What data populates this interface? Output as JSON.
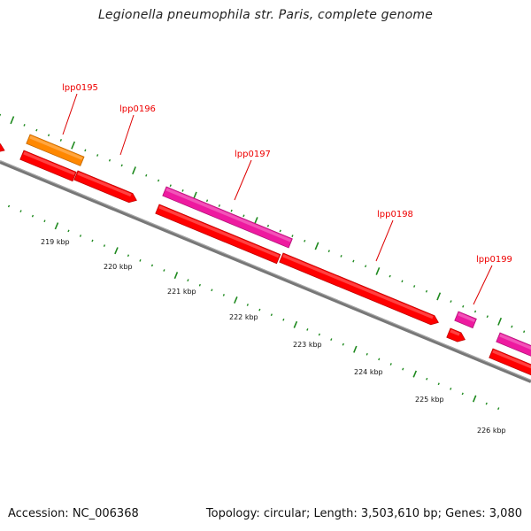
{
  "title": "Legionella pneumophila str. Paris, complete genome",
  "footer": {
    "accession": "Accession: NC_006368",
    "summary": "Topology: circular; Length: 3,503,610 bp; Genes: 3,080"
  },
  "colors": {
    "cds_forward": "#ff0000",
    "cds_pink": "#ee1aa0",
    "cds_orange": "#ff8800",
    "backbone": "#777777",
    "leader": "#dd0000",
    "tick_marks": "#1f8a1f"
  },
  "gene_labels": [
    "lpp0195",
    "lpp0196",
    "lpp0197",
    "lpp0198",
    "lpp0199"
  ],
  "scale_labels": [
    "219 kbp",
    "220 kbp",
    "221 kbp",
    "222 kbp",
    "223 kbp",
    "224 kbp",
    "225 kbp",
    "226 kbp"
  ]
}
